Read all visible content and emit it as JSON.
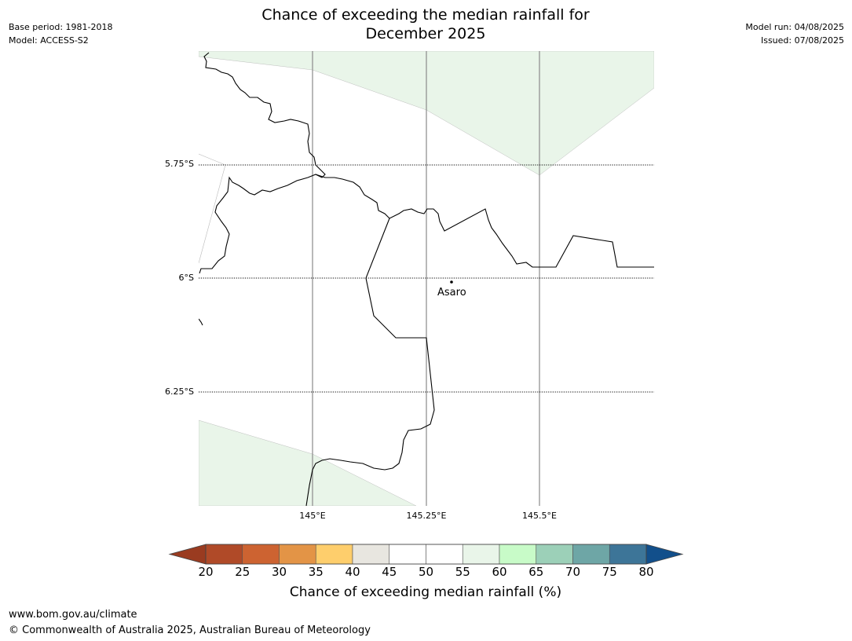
{
  "header": {
    "base_period": "Base period: 1981-2018",
    "model": "Model: ACCESS-S2",
    "model_run": "Model run: 04/08/2025",
    "issued": "Issued: 07/08/2025",
    "title_line1": "Chance of exceeding the median rainfall for",
    "title_line2": "December 2025"
  },
  "map": {
    "latitude_labels": [
      "5.75°S",
      "6°S",
      "6.25°S"
    ],
    "longitude_labels": [
      "145°E",
      "145.25°E",
      "145.5°E"
    ],
    "place": "Asaro",
    "shading_class": "55-60",
    "shading_color": "#e9f5e9"
  },
  "colorbar": {
    "ticks": [
      "20",
      "25",
      "30",
      "35",
      "40",
      "45",
      "50",
      "55",
      "60",
      "65",
      "70",
      "75",
      "80"
    ],
    "colors": [
      "#b04a28",
      "#cd6331",
      "#e39446",
      "#fece6c",
      "#e8e6e0",
      "#ffffff",
      "#ffffff",
      "#e9f5e9",
      "#c8fbc8",
      "#9cd0b8",
      "#6ea6a6",
      "#3d7598"
    ],
    "under_color": "#9a3b20",
    "over_color": "#124f8b",
    "label": "Chance of exceeding median rainfall (%)"
  },
  "footer": {
    "url": "www.bom.gov.au/climate",
    "copyright": "© Commonwealth of Australia 2025, Australian Bureau of Meteorology"
  }
}
